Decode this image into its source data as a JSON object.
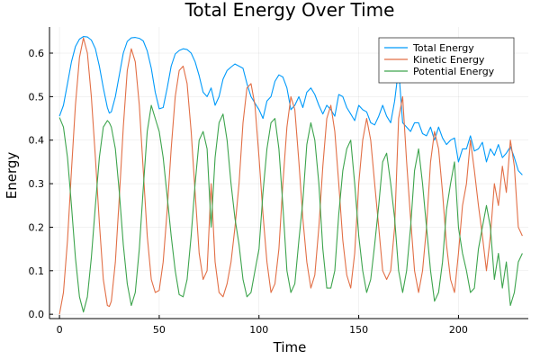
{
  "chart_data": {
    "type": "line",
    "title": "Total Energy Over Time",
    "xlabel": "Time",
    "ylabel": "Energy",
    "xlim": [
      -5,
      235
    ],
    "ylim": [
      -0.01,
      0.66
    ],
    "xticks": [
      0,
      50,
      100,
      150,
      200
    ],
    "yticks": [
      0.0,
      0.1,
      0.2,
      0.3,
      0.4,
      0.5,
      0.6
    ],
    "ytick_labels": [
      "0.0",
      "0.1",
      "0.2",
      "0.3",
      "0.4",
      "0.5",
      "0.6"
    ],
    "grid": true,
    "legend_position": "top-right",
    "series": [
      {
        "name": "Total Energy",
        "color": "#009AFA",
        "x": [
          0,
          2,
          4,
          6,
          8,
          10,
          12,
          14,
          16,
          18,
          20,
          22,
          24,
          25,
          26,
          28,
          30,
          32,
          34,
          36,
          38,
          40,
          42,
          44,
          46,
          48,
          50,
          52,
          54,
          56,
          58,
          60,
          62,
          64,
          66,
          68,
          70,
          72,
          74,
          76,
          78,
          80,
          82,
          84,
          86,
          88,
          90,
          92,
          94,
          96,
          98,
          100,
          102,
          104,
          106,
          108,
          110,
          112,
          114,
          116,
          118,
          120,
          122,
          124,
          126,
          128,
          130,
          132,
          134,
          136,
          138,
          140,
          142,
          144,
          146,
          148,
          150,
          152,
          154,
          156,
          158,
          160,
          162,
          164,
          166,
          168,
          170,
          172,
          174,
          176,
          178,
          180,
          182,
          184,
          186,
          188,
          190,
          192,
          194,
          196,
          198,
          200,
          202,
          204,
          206,
          208,
          210,
          212,
          214,
          216,
          218,
          220,
          222,
          224,
          226,
          228,
          230,
          232
        ],
        "values": [
          0.455,
          0.48,
          0.53,
          0.58,
          0.615,
          0.632,
          0.638,
          0.637,
          0.63,
          0.61,
          0.57,
          0.52,
          0.475,
          0.462,
          0.465,
          0.5,
          0.55,
          0.6,
          0.627,
          0.635,
          0.636,
          0.634,
          0.628,
          0.605,
          0.565,
          0.51,
          0.472,
          0.475,
          0.52,
          0.57,
          0.598,
          0.606,
          0.61,
          0.608,
          0.6,
          0.58,
          0.548,
          0.51,
          0.5,
          0.52,
          0.48,
          0.5,
          0.54,
          0.56,
          0.568,
          0.575,
          0.57,
          0.565,
          0.53,
          0.5,
          0.485,
          0.47,
          0.45,
          0.49,
          0.5,
          0.535,
          0.55,
          0.545,
          0.52,
          0.47,
          0.48,
          0.5,
          0.475,
          0.51,
          0.52,
          0.505,
          0.48,
          0.46,
          0.48,
          0.47,
          0.455,
          0.505,
          0.5,
          0.475,
          0.46,
          0.445,
          0.48,
          0.47,
          0.465,
          0.44,
          0.435,
          0.455,
          0.48,
          0.455,
          0.44,
          0.49,
          0.565,
          0.44,
          0.43,
          0.42,
          0.44,
          0.44,
          0.415,
          0.41,
          0.43,
          0.4,
          0.43,
          0.405,
          0.39,
          0.4,
          0.405,
          0.35,
          0.38,
          0.38,
          0.41,
          0.375,
          0.38,
          0.395,
          0.35,
          0.38,
          0.365,
          0.39,
          0.36,
          0.37,
          0.385,
          0.36,
          0.33,
          0.32
        ]
      },
      {
        "name": "Kinetic Energy",
        "color": "#E26F46",
        "x": [
          0,
          2,
          4,
          6,
          8,
          10,
          12,
          14,
          16,
          18,
          20,
          22,
          24,
          25,
          26,
          28,
          30,
          32,
          34,
          36,
          38,
          40,
          42,
          44,
          46,
          48,
          50,
          52,
          54,
          56,
          58,
          60,
          62,
          64,
          66,
          68,
          70,
          72,
          74,
          76,
          78,
          80,
          82,
          84,
          86,
          88,
          90,
          92,
          94,
          96,
          98,
          100,
          102,
          104,
          106,
          108,
          110,
          112,
          114,
          116,
          118,
          120,
          122,
          124,
          126,
          128,
          130,
          132,
          134,
          136,
          138,
          140,
          142,
          144,
          146,
          148,
          150,
          152,
          154,
          156,
          158,
          160,
          162,
          164,
          166,
          168,
          170,
          172,
          174,
          176,
          178,
          180,
          182,
          184,
          186,
          188,
          190,
          192,
          194,
          196,
          198,
          200,
          202,
          204,
          206,
          208,
          210,
          212,
          214,
          216,
          218,
          220,
          222,
          224,
          226,
          228,
          230,
          232
        ],
        "values": [
          0.0,
          0.05,
          0.17,
          0.33,
          0.48,
          0.59,
          0.635,
          0.6,
          0.5,
          0.36,
          0.21,
          0.08,
          0.02,
          0.018,
          0.03,
          0.12,
          0.27,
          0.43,
          0.56,
          0.61,
          0.58,
          0.48,
          0.33,
          0.18,
          0.08,
          0.05,
          0.055,
          0.12,
          0.24,
          0.38,
          0.5,
          0.56,
          0.57,
          0.53,
          0.42,
          0.28,
          0.14,
          0.08,
          0.1,
          0.3,
          0.12,
          0.05,
          0.04,
          0.07,
          0.12,
          0.2,
          0.3,
          0.44,
          0.52,
          0.53,
          0.48,
          0.36,
          0.23,
          0.12,
          0.05,
          0.07,
          0.15,
          0.3,
          0.43,
          0.5,
          0.47,
          0.35,
          0.22,
          0.12,
          0.06,
          0.09,
          0.2,
          0.34,
          0.45,
          0.48,
          0.42,
          0.3,
          0.17,
          0.09,
          0.06,
          0.14,
          0.3,
          0.4,
          0.45,
          0.4,
          0.3,
          0.2,
          0.1,
          0.08,
          0.1,
          0.2,
          0.45,
          0.5,
          0.35,
          0.22,
          0.1,
          0.05,
          0.1,
          0.2,
          0.35,
          0.42,
          0.38,
          0.28,
          0.16,
          0.08,
          0.05,
          0.14,
          0.25,
          0.3,
          0.4,
          0.33,
          0.25,
          0.18,
          0.1,
          0.18,
          0.3,
          0.25,
          0.34,
          0.28,
          0.4,
          0.34,
          0.2,
          0.18
        ]
      },
      {
        "name": "Potential Energy",
        "color": "#3DA44D",
        "x": [
          0,
          2,
          4,
          6,
          8,
          10,
          12,
          14,
          16,
          18,
          20,
          22,
          24,
          25,
          26,
          28,
          30,
          32,
          34,
          36,
          38,
          40,
          42,
          44,
          46,
          48,
          50,
          52,
          54,
          56,
          58,
          60,
          62,
          64,
          66,
          68,
          70,
          72,
          74,
          76,
          78,
          80,
          82,
          84,
          86,
          88,
          90,
          92,
          94,
          96,
          98,
          100,
          102,
          104,
          106,
          108,
          110,
          112,
          114,
          116,
          118,
          120,
          122,
          124,
          126,
          128,
          130,
          132,
          134,
          136,
          138,
          140,
          142,
          144,
          146,
          148,
          150,
          152,
          154,
          156,
          158,
          160,
          162,
          164,
          166,
          168,
          170,
          172,
          174,
          176,
          178,
          180,
          182,
          184,
          186,
          188,
          190,
          192,
          194,
          196,
          198,
          200,
          202,
          204,
          206,
          208,
          210,
          212,
          214,
          216,
          218,
          220,
          222,
          224,
          226,
          228,
          230,
          232
        ],
        "values": [
          0.452,
          0.43,
          0.36,
          0.25,
          0.13,
          0.04,
          0.005,
          0.04,
          0.13,
          0.25,
          0.36,
          0.43,
          0.445,
          0.44,
          0.43,
          0.38,
          0.28,
          0.16,
          0.07,
          0.02,
          0.05,
          0.15,
          0.29,
          0.42,
          0.48,
          0.45,
          0.42,
          0.36,
          0.27,
          0.18,
          0.1,
          0.045,
          0.04,
          0.08,
          0.18,
          0.3,
          0.4,
          0.42,
          0.38,
          0.2,
          0.36,
          0.44,
          0.46,
          0.4,
          0.3,
          0.22,
          0.16,
          0.08,
          0.04,
          0.05,
          0.1,
          0.15,
          0.28,
          0.38,
          0.44,
          0.45,
          0.38,
          0.25,
          0.1,
          0.05,
          0.07,
          0.17,
          0.26,
          0.39,
          0.44,
          0.4,
          0.3,
          0.15,
          0.06,
          0.06,
          0.1,
          0.23,
          0.33,
          0.38,
          0.4,
          0.3,
          0.18,
          0.1,
          0.05,
          0.08,
          0.16,
          0.25,
          0.35,
          0.37,
          0.3,
          0.22,
          0.1,
          0.05,
          0.1,
          0.2,
          0.33,
          0.38,
          0.3,
          0.2,
          0.1,
          0.03,
          0.05,
          0.12,
          0.24,
          0.3,
          0.35,
          0.2,
          0.14,
          0.1,
          0.05,
          0.06,
          0.15,
          0.2,
          0.25,
          0.2,
          0.08,
          0.14,
          0.06,
          0.12,
          0.02,
          0.05,
          0.12,
          0.14
        ]
      }
    ]
  }
}
